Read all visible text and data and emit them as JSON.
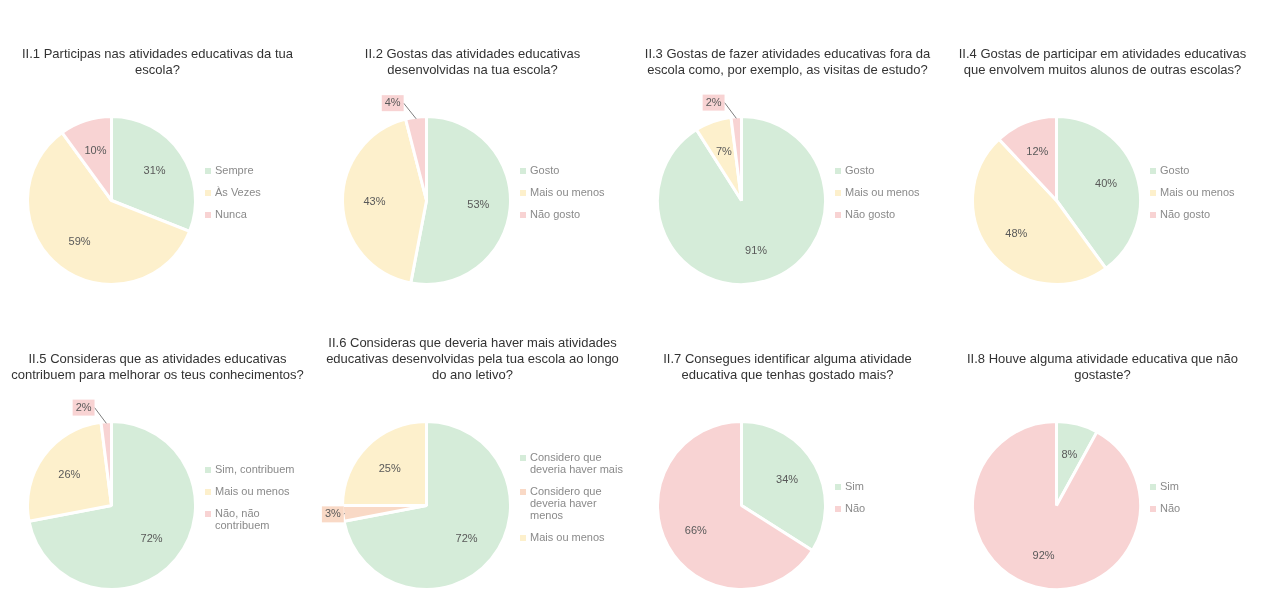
{
  "chart_data": [
    {
      "type": "pie",
      "title": "II.1 Participas nas atividades educativas da tua escola?",
      "categories": [
        "Sempre",
        "Às Vezes",
        "Nunca"
      ],
      "values": [
        31,
        59,
        10
      ],
      "colors": [
        "#d5ecd9",
        "#fdf0cc",
        "#f8d3d3"
      ],
      "value_labels": [
        "31%",
        "59%",
        "10%"
      ],
      "legend": "right"
    },
    {
      "type": "pie",
      "title": "II.2 Gostas das atividades educativas desenvolvidas na tua escola?",
      "categories": [
        "Gosto",
        "Mais ou menos",
        "Não gosto"
      ],
      "values": [
        53,
        43,
        4
      ],
      "colors": [
        "#d5ecd9",
        "#fdf0cc",
        "#f8d3d3"
      ],
      "value_labels": [
        "53%",
        "43%",
        "4%"
      ],
      "legend": "right"
    },
    {
      "type": "pie",
      "title": "II.3 Gostas de fazer atividades educativas fora da escola como, por exemplo, as visitas de estudo?",
      "categories": [
        "Gosto",
        "Mais ou menos",
        "Não gosto"
      ],
      "values": [
        91,
        7,
        2
      ],
      "colors": [
        "#d5ecd9",
        "#fdf0cc",
        "#f8d3d3"
      ],
      "value_labels": [
        "91%",
        "7%",
        "2%"
      ],
      "legend": "right"
    },
    {
      "type": "pie",
      "title": "II.4 Gostas de participar em atividades educativas que envolvem muitos alunos de outras escolas?",
      "categories": [
        "Gosto",
        "Mais ou menos",
        "Não gosto"
      ],
      "values": [
        40,
        48,
        12
      ],
      "colors": [
        "#d5ecd9",
        "#fdf0cc",
        "#f8d3d3"
      ],
      "value_labels": [
        "40%",
        "48%",
        "12%"
      ],
      "legend": "right"
    },
    {
      "type": "pie",
      "title": "II.5 Consideras que as atividades educativas contribuem para melhorar os teus conhecimentos?",
      "categories": [
        "Sim, contribuem",
        "Mais ou menos",
        "Não, não contribuem"
      ],
      "values": [
        72,
        26,
        2
      ],
      "colors": [
        "#d5ecd9",
        "#fdf0cc",
        "#f8d3d3"
      ],
      "value_labels": [
        "72%",
        "26%",
        "2%"
      ],
      "legend": "right"
    },
    {
      "type": "pie",
      "title": "II.6 Consideras que deveria haver mais atividades educativas desenvolvidas pela tua escola ao longo do ano letivo?",
      "categories": [
        "Considero que deveria haver mais",
        "Considero que deveria haver menos",
        "Mais ou menos"
      ],
      "values": [
        72,
        3,
        25
      ],
      "colors": [
        "#d5ecd9",
        "#f9d9c6",
        "#fdf0cc"
      ],
      "value_labels": [
        "72%",
        "3%",
        "25%"
      ],
      "legend": "right"
    },
    {
      "type": "pie",
      "title": "II.7 Consegues identificar alguma atividade educativa que tenhas gostado mais?",
      "categories": [
        "Sim",
        "Não"
      ],
      "values": [
        34,
        66
      ],
      "colors": [
        "#d5ecd9",
        "#f8d3d3"
      ],
      "value_labels": [
        "34%",
        "66%"
      ],
      "legend": "right"
    },
    {
      "type": "pie",
      "title": "II.8 Houve alguma atividade educativa que não gostaste?",
      "categories": [
        "Sim",
        "Não"
      ],
      "values": [
        8,
        92
      ],
      "colors": [
        "#d5ecd9",
        "#f8d3d3"
      ],
      "value_labels": [
        "8%",
        "92%"
      ],
      "legend": "right"
    }
  ]
}
